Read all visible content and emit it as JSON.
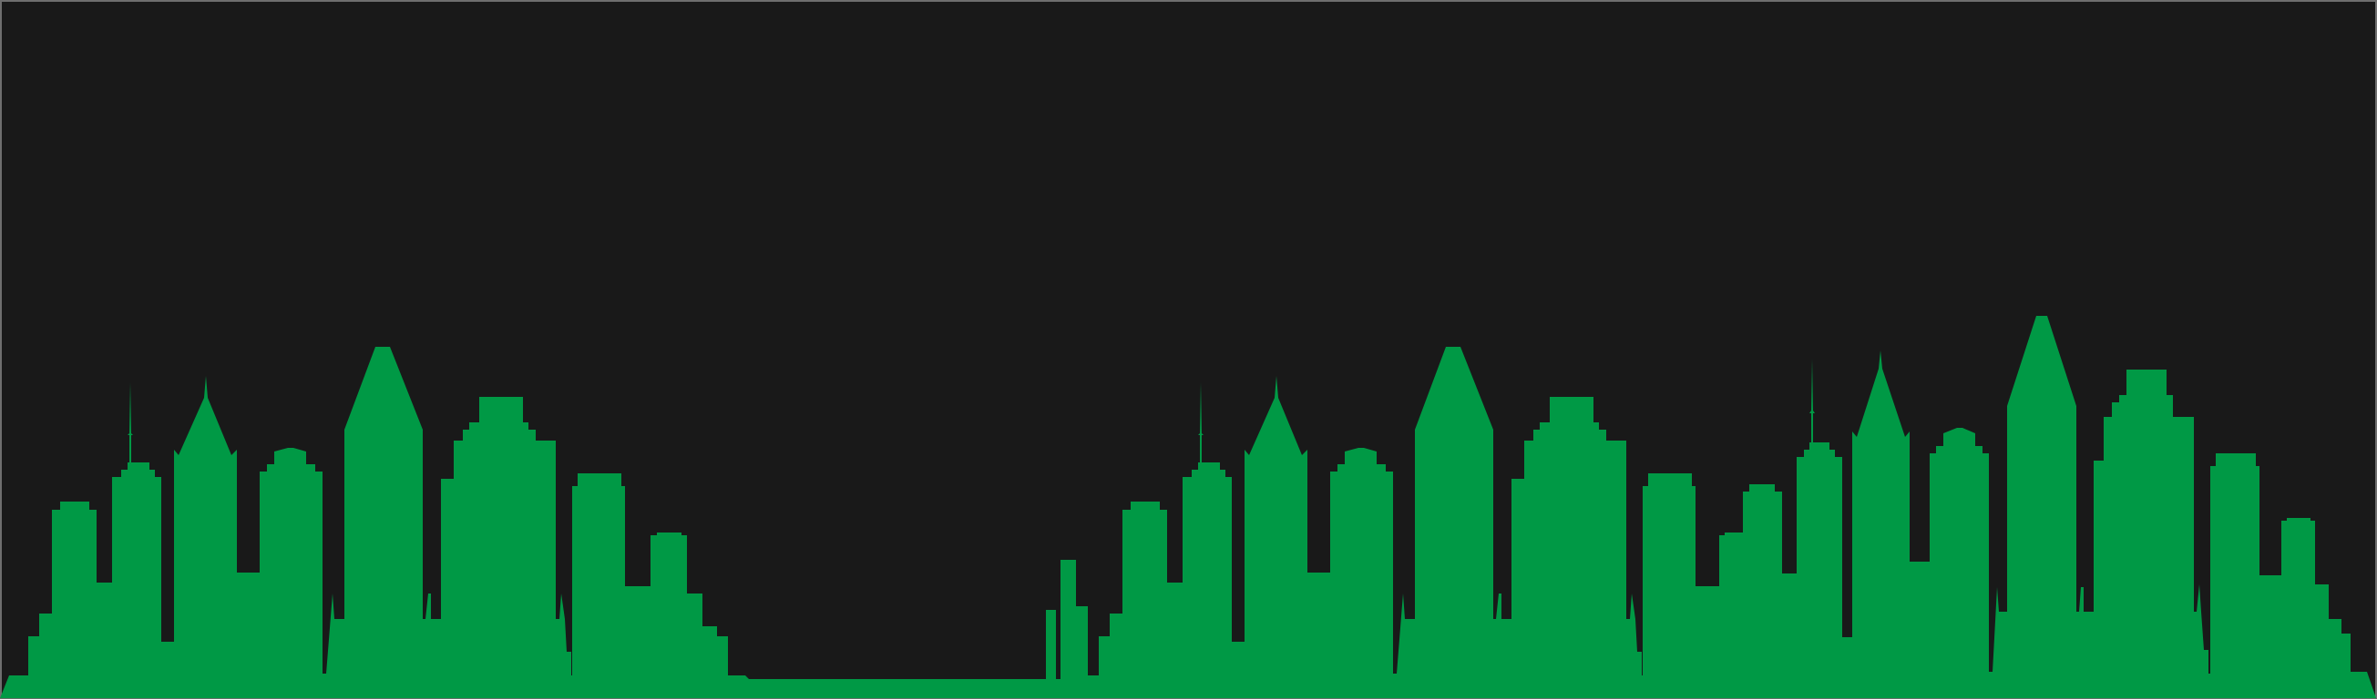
{
  "scene": {
    "sky_color": "#191919",
    "skyline_color": "#009945",
    "frame_color": "#6e6e6e",
    "page_background": "#ffffff"
  }
}
